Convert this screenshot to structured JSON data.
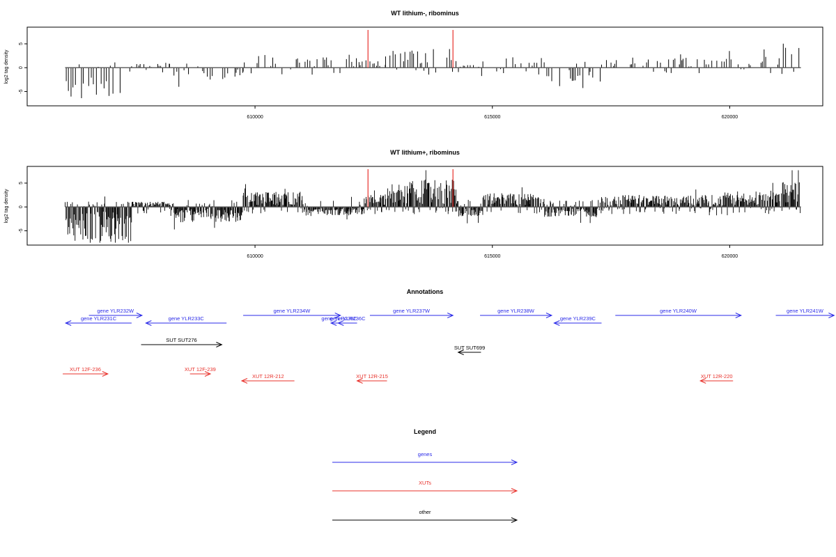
{
  "chart_data": [
    {
      "type": "bar",
      "id": "track1",
      "title": "WT lithium-, ribominus",
      "ylabel": "log2 tag density",
      "xlim": [
        605200,
        621960
      ],
      "ylim": [
        -8,
        8.5
      ],
      "yticks": [
        -5,
        0,
        5
      ],
      "xticks": [
        610000,
        615000,
        620000
      ],
      "grid": false,
      "bar_color": "#000000",
      "highlight_color": "#e8302a",
      "highlight_positions": [
        612380,
        614170
      ],
      "density": "sparse",
      "segments": [
        {
          "start": 606000,
          "end": 607400,
          "level": -3.6
        },
        {
          "start": 607400,
          "end": 608200,
          "level": 0.6
        },
        {
          "start": 608200,
          "end": 609750,
          "level": -1.4
        },
        {
          "start": 609750,
          "end": 611000,
          "level": 1.6
        },
        {
          "start": 611000,
          "end": 612300,
          "level": 1.2
        },
        {
          "start": 612300,
          "end": 612750,
          "level": 0.9
        },
        {
          "start": 612750,
          "end": 614250,
          "level": 2.2
        },
        {
          "start": 614250,
          "end": 614800,
          "level": 0.3
        },
        {
          "start": 614800,
          "end": 616100,
          "level": 1.3
        },
        {
          "start": 616100,
          "end": 617300,
          "level": -1.6
        },
        {
          "start": 617300,
          "end": 619900,
          "level": 1.2
        },
        {
          "start": 619900,
          "end": 621100,
          "level": 1.4
        },
        {
          "start": 621100,
          "end": 621500,
          "level": 2.8
        }
      ]
    },
    {
      "type": "bar",
      "id": "track2",
      "title": "WT lithium+, ribominus",
      "ylabel": "log2 tag density",
      "xlim": [
        605200,
        621960
      ],
      "ylim": [
        -8,
        8.5
      ],
      "yticks": [
        -5,
        0,
        5
      ],
      "xticks": [
        610000,
        615000,
        620000
      ],
      "grid": false,
      "bar_color": "#000000",
      "highlight_color": "#e8302a",
      "highlight_positions": [
        612380,
        614170
      ],
      "density": "dense",
      "segments": [
        {
          "start": 606000,
          "end": 607400,
          "level": -4.2
        },
        {
          "start": 607400,
          "end": 608200,
          "level": 0.6
        },
        {
          "start": 608200,
          "end": 609750,
          "level": -1.8
        },
        {
          "start": 609750,
          "end": 611000,
          "level": 1.8
        },
        {
          "start": 611000,
          "end": 612300,
          "level": -1.0
        },
        {
          "start": 612300,
          "end": 612750,
          "level": 1.5
        },
        {
          "start": 612750,
          "end": 614250,
          "level": 3.2
        },
        {
          "start": 614250,
          "end": 614800,
          "level": -1.2
        },
        {
          "start": 614800,
          "end": 616100,
          "level": 1.6
        },
        {
          "start": 616100,
          "end": 617300,
          "level": -1.2
        },
        {
          "start": 617300,
          "end": 619900,
          "level": 1.4
        },
        {
          "start": 619900,
          "end": 621100,
          "level": 1.8
        },
        {
          "start": 621100,
          "end": 621500,
          "level": 3.2
        }
      ]
    }
  ],
  "annotations": {
    "title": "Annotations",
    "colors": {
      "gene": "#2a2ae8",
      "xut": "#e8302a",
      "other": "#000000"
    },
    "features": [
      {
        "label": "gene YLR232W",
        "kind": "gene",
        "start": 606500,
        "end": 607620,
        "row": 0,
        "dir": "right",
        "label_pos": "above"
      },
      {
        "label": "gene YLR231C",
        "kind": "gene",
        "start": 606010,
        "end": 607400,
        "row": 1,
        "dir": "left",
        "label_pos": "above"
      },
      {
        "label": "gene YLR233C",
        "kind": "gene",
        "start": 607700,
        "end": 609400,
        "row": 1,
        "dir": "left",
        "label_pos": "above"
      },
      {
        "label": "gene YLR234W",
        "kind": "gene",
        "start": 609750,
        "end": 611800,
        "row": 0,
        "dir": "right",
        "label_pos": "above"
      },
      {
        "label": "gene YLR235C",
        "kind": "gene",
        "start": 611600,
        "end": 611950,
        "row": 1,
        "dir": "left",
        "label_pos": "above"
      },
      {
        "label": "gene YLR236C",
        "kind": "gene",
        "start": 611750,
        "end": 612150,
        "row": 1,
        "dir": "left",
        "label_pos": "above"
      },
      {
        "label": "gene YLR237W",
        "kind": "gene",
        "start": 612420,
        "end": 614170,
        "row": 0,
        "dir": "right",
        "label_pos": "above"
      },
      {
        "label": "gene YLR238W",
        "kind": "gene",
        "start": 614740,
        "end": 616250,
        "row": 0,
        "dir": "right",
        "label_pos": "above"
      },
      {
        "label": "gene YLR239C",
        "kind": "gene",
        "start": 616300,
        "end": 617300,
        "row": 1,
        "dir": "left",
        "label_pos": "above"
      },
      {
        "label": "gene YLR240W",
        "kind": "gene",
        "start": 617590,
        "end": 620240,
        "row": 0,
        "dir": "right",
        "label_pos": "above"
      },
      {
        "label": "gene YLR241W",
        "kind": "gene",
        "start": 620970,
        "end": 622200,
        "row": 0,
        "dir": "right",
        "label_pos": "above"
      },
      {
        "label": "SUT SUT276",
        "kind": "other",
        "start": 607600,
        "end": 609300,
        "row": 2,
        "dir": "right",
        "label_pos": "above"
      },
      {
        "label": "SUT SUT699",
        "kind": "other",
        "start": 614280,
        "end": 614760,
        "row": 3,
        "dir": "left",
        "label_pos": "above"
      },
      {
        "label": "XUT 12F-236",
        "kind": "xut",
        "start": 605950,
        "end": 606900,
        "row": 4,
        "dir": "right",
        "label_pos": "above"
      },
      {
        "label": "XUT 12F-239",
        "kind": "xut",
        "start": 608630,
        "end": 609060,
        "row": 4,
        "dir": "right",
        "label_pos": "above"
      },
      {
        "label": "XUT 12R-212",
        "kind": "xut",
        "start": 609720,
        "end": 610830,
        "row": 5,
        "dir": "left",
        "label_pos": "above"
      },
      {
        "label": "XUT 12R-215",
        "kind": "xut",
        "start": 612150,
        "end": 612780,
        "row": 5,
        "dir": "left",
        "label_pos": "above"
      },
      {
        "label": "XUT 12R-220",
        "kind": "xut",
        "start": 619380,
        "end": 620070,
        "row": 5,
        "dir": "left",
        "label_pos": "above"
      }
    ]
  },
  "legend": {
    "title": "Legend",
    "items": [
      {
        "label": "genes",
        "color": "#2a2ae8"
      },
      {
        "label": "XUTs",
        "color": "#e8302a"
      },
      {
        "label": "other",
        "color": "#000000"
      }
    ]
  }
}
